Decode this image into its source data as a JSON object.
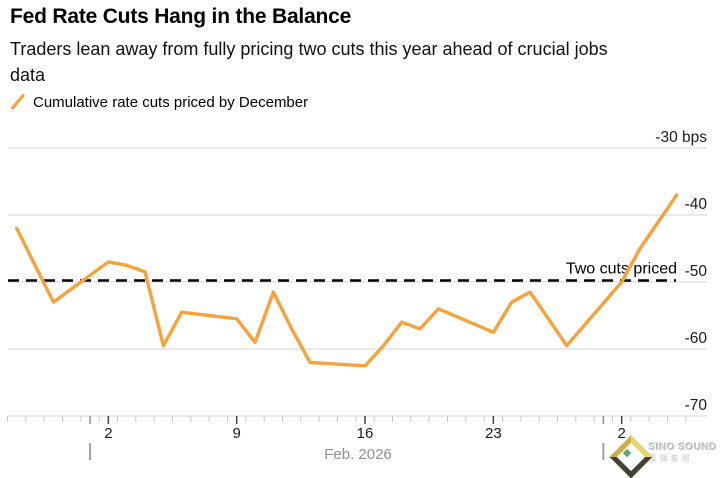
{
  "header": {
    "title": "Fed Rate Cuts Hang in the Balance",
    "subtitle": "Traders lean away from fully pricing two cuts this year ahead of crucial jobs data",
    "legend": {
      "label": "Cumulative rate cuts priced by December",
      "color": "#F7A23B"
    }
  },
  "chart_data": {
    "type": "line",
    "title": "Fed Rate Cuts Hang in the Balance",
    "subtitle": "Traders lean away from fully pricing two cuts this year ahead of crucial jobs data",
    "ylabel": "bps",
    "ylim": [
      -70,
      -30
    ],
    "grid": "horizontal",
    "legend_position": "top-left",
    "y_tick_values": [
      -30,
      -40,
      -50,
      -60,
      -70
    ],
    "y_tick_labels": [
      "-30 bps",
      "-40",
      "-50",
      "-60",
      "-70"
    ],
    "x_tick_labels": [
      "2",
      "9",
      "16",
      "23",
      "2"
    ],
    "x_tick_days": [
      5,
      12,
      19,
      26,
      33
    ],
    "x_axis_label": "Feb. 2026",
    "month_separator_days": [
      4,
      32
    ],
    "reference_line": {
      "value": -50,
      "label": "Two cuts priced",
      "style": "dashed",
      "color": "#000000"
    },
    "series": [
      {
        "name": "Cumulative rate cuts priced by December",
        "color": "#F7A23B",
        "dates": [
          "Jan 28",
          "Jan 29",
          "Jan 30",
          "Feb 2",
          "Feb 3",
          "Feb 4",
          "Feb 5",
          "Feb 6",
          "Feb 9",
          "Feb 10",
          "Feb 11",
          "Feb 12",
          "Feb 13",
          "Feb 16",
          "Feb 17",
          "Feb 18",
          "Feb 19",
          "Feb 20",
          "Feb 23",
          "Feb 24",
          "Feb 25",
          "Feb 26",
          "Feb 27",
          "Mar 2",
          "Mar 3",
          "Mar 4",
          "Mar 5"
        ],
        "day_offsets": [
          0,
          1,
          2,
          5,
          6,
          7,
          8,
          9,
          12,
          13,
          14,
          15,
          16,
          19,
          20,
          21,
          22,
          23,
          26,
          27,
          28,
          29,
          30,
          33,
          34,
          35,
          36
        ],
        "values": [
          -42,
          -47.5,
          -53,
          -47,
          -47.5,
          -48.5,
          -59.5,
          -54.5,
          -55.5,
          -59,
          -51.5,
          -57,
          -62,
          -62.5,
          -59.5,
          -56,
          -57,
          -54,
          -57.5,
          -53,
          -51.5,
          -55.5,
          -59.5,
          -50,
          -45,
          -41,
          -37
        ]
      }
    ]
  },
  "watermark": {
    "line1": "SINO SOUND",
    "line2": "漢聲集團"
  },
  "colors": {
    "accent_orange": "#F7A23B",
    "gridline": "#DEDEDE",
    "minor_tick": "#C9C9C9",
    "axis_text": "#1A1A1A",
    "muted_text": "#8F8F8F"
  }
}
